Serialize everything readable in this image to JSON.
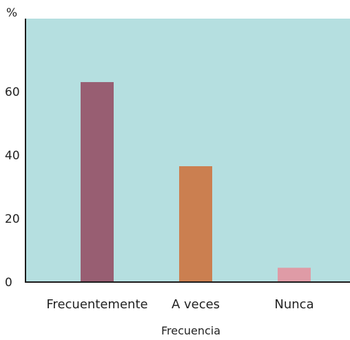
{
  "chart_data": {
    "type": "bar",
    "categories": [
      "Frecuentemente",
      "A veces",
      "Nunca"
    ],
    "values": [
      63,
      36.5,
      4.5
    ],
    "bar_colors": [
      "#985e72",
      "#cb7f50",
      "#df9ba6"
    ],
    "xlabel": "Frecuencia",
    "ylabel": "%",
    "ylim": [
      0,
      83
    ],
    "yticks": [
      0,
      20,
      40,
      60
    ],
    "grid": false,
    "plot_background": "#b5dfe0",
    "axis_color": "#1a1a1a"
  }
}
